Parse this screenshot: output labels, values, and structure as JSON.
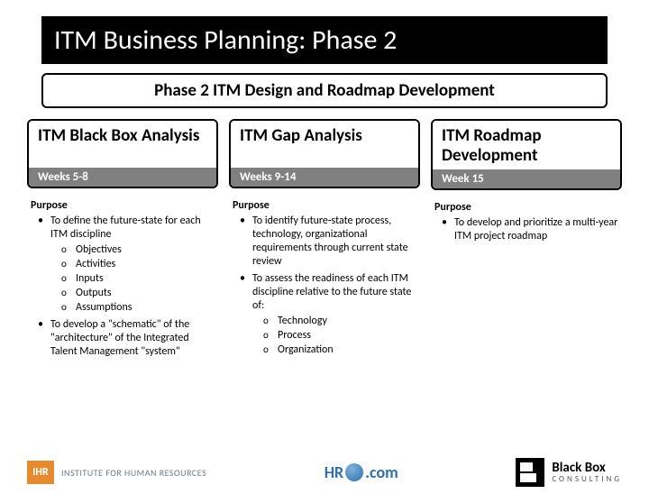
{
  "title": "ITM Business Planning:  Phase 2",
  "subtitle": "Phase 2  ITM Design and Roadmap Development",
  "columns": [
    {
      "title": "ITM Black Box Analysis",
      "weeks": "Weeks 5-8",
      "purpose_label": "Purpose",
      "bullets": [
        {
          "text": "To define the future-state for each ITM discipline",
          "sub": [
            "Objectives",
            "Activities",
            "Inputs",
            "Outputs",
            "Assumptions"
          ]
        },
        {
          "text": "To develop a \"schematic\" of the \"architecture\" of the Integrated Talent Management \"system\""
        }
      ]
    },
    {
      "title": "ITM Gap Analysis",
      "weeks": "Weeks 9-14",
      "purpose_label": "Purpose",
      "bullets": [
        {
          "text": "To identify future-state process, technology, organizational requirements through current state review"
        },
        {
          "text": "To assess the readiness of each ITM discipline relative to the future state of:",
          "sub": [
            "Technology",
            "Process",
            "Organization"
          ]
        }
      ]
    },
    {
      "title": "ITM Roadmap Development",
      "weeks": "Week 15",
      "purpose_label": "Purpose",
      "bullets": [
        {
          "text": "To develop and prioritize a multi-year ITM project roadmap"
        }
      ]
    }
  ],
  "logos": {
    "ihr": {
      "mark": "IHR",
      "text": "INSTITUTE FOR HUMAN RESOURCES"
    },
    "hr": {
      "left": "HR",
      "right": ".com"
    },
    "blackbox": {
      "line1": "Black Box",
      "line2": "CONSULTING"
    }
  },
  "colors": {
    "title_bg": "#000000",
    "weeks_bg": "#808080",
    "ihr_orange": "#e58a2e",
    "hr_blue": "#2f6fab"
  }
}
